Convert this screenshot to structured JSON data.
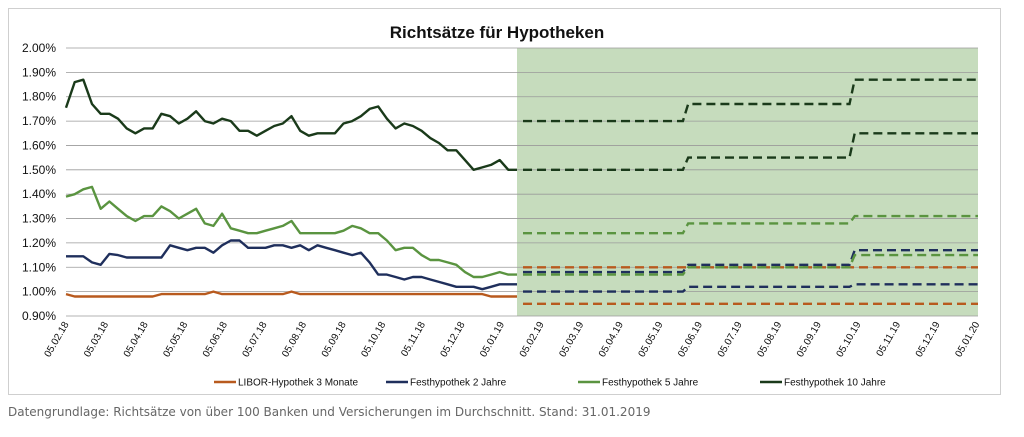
{
  "chart_data": {
    "type": "line",
    "title": "Richtsätze für Hypotheken",
    "xlabel": "",
    "ylabel": "",
    "ylim": [
      0.009,
      0.02
    ],
    "y_ticks": [
      "2.00%",
      "1.90%",
      "1.80%",
      "1.70%",
      "1.60%",
      "1.50%",
      "1.40%",
      "1.30%",
      "1.20%",
      "1.10%",
      "1.00%",
      "0.90%"
    ],
    "x_ticks": [
      "05.02.18",
      "05.03.18",
      "05.04.18",
      "05.05.18",
      "05.06.18",
      "05.07.18",
      "05.08.18",
      "05.09.18",
      "05.10.18",
      "05.11.18",
      "05.12.18",
      "05.01.19",
      "05.02.19",
      "05.03.19",
      "05.04.19",
      "05.05.19",
      "05.06.19",
      "05.07.19",
      "05.08.19",
      "05.09.19",
      "05.10.19",
      "05.11.19",
      "05.12.19",
      "05.01.20"
    ],
    "grid": true,
    "legend_placement": "bottom",
    "forecast_region": {
      "from": "05.02.19",
      "to": "end",
      "color": "#c6dcbd"
    },
    "series": [
      {
        "name": "LIBOR-Hypothek 3 Monate",
        "color": "#b85a1e",
        "values": [
          0.0099,
          0.0098,
          0.0098,
          0.0098,
          0.0098,
          0.0098,
          0.0098,
          0.0098,
          0.0098,
          0.0098,
          0.0098,
          0.0099,
          0.0099,
          0.0099,
          0.0099,
          0.0099,
          0.0099,
          0.01,
          0.0099,
          0.0099,
          0.0099,
          0.0099,
          0.0099,
          0.0099,
          0.0099,
          0.0099,
          0.01,
          0.0099,
          0.0099,
          0.0099,
          0.0099,
          0.0099,
          0.0099,
          0.0099,
          0.0099,
          0.0099,
          0.0099,
          0.0099,
          0.0099,
          0.0099,
          0.0099,
          0.0099,
          0.0099,
          0.0099,
          0.0099,
          0.0099,
          0.0099,
          0.0099,
          0.0099,
          0.0098,
          0.0098,
          0.0098,
          0.0098
        ],
        "forecast_low": [
          [
            0,
            0.0095
          ],
          [
            1,
            0.0095
          ]
        ],
        "forecast_high": [
          [
            0,
            0.011
          ],
          [
            1,
            0.011
          ]
        ]
      },
      {
        "name": "Festhypothek 2 Jahre",
        "color": "#1f2f5c",
        "values": [
          0.01145,
          0.01145,
          0.01145,
          0.0112,
          0.0111,
          0.01155,
          0.0115,
          0.0114,
          0.0114,
          0.0114,
          0.0114,
          0.0114,
          0.0119,
          0.0118,
          0.0117,
          0.0118,
          0.0118,
          0.0116,
          0.0119,
          0.0121,
          0.0121,
          0.0118,
          0.0118,
          0.0118,
          0.0119,
          0.0119,
          0.0118,
          0.0119,
          0.0117,
          0.0119,
          0.0118,
          0.0117,
          0.0116,
          0.0115,
          0.0116,
          0.0112,
          0.0107,
          0.0107,
          0.0106,
          0.0105,
          0.0106,
          0.0106,
          0.0105,
          0.0104,
          0.0103,
          0.0102,
          0.0102,
          0.0102,
          0.0101,
          0.0102,
          0.0103,
          0.0103,
          0.0103
        ],
        "forecast_low": [
          [
            0,
            0.01
          ],
          [
            0.3515,
            0.01
          ],
          [
            0.363,
            0.0102
          ],
          [
            0.7175,
            0.0102
          ],
          [
            0.729,
            0.0103
          ],
          [
            1,
            0.0103
          ]
        ],
        "forecast_high": [
          [
            0,
            0.0108
          ],
          [
            0.3515,
            0.0108
          ],
          [
            0.363,
            0.0111
          ],
          [
            0.7175,
            0.0111
          ],
          [
            0.729,
            0.0117
          ],
          [
            1,
            0.0117
          ]
        ]
      },
      {
        "name": "Festhypothek 5 Jahre",
        "color": "#5a9440",
        "values": [
          0.0139,
          0.014,
          0.0142,
          0.0143,
          0.0134,
          0.0137,
          0.0134,
          0.0131,
          0.0129,
          0.0131,
          0.0131,
          0.0135,
          0.0133,
          0.013,
          0.0132,
          0.0134,
          0.0128,
          0.0127,
          0.0132,
          0.0126,
          0.0125,
          0.0124,
          0.0124,
          0.0125,
          0.0126,
          0.0127,
          0.0129,
          0.0124,
          0.0124,
          0.0124,
          0.0124,
          0.0124,
          0.0125,
          0.0127,
          0.0126,
          0.0124,
          0.0124,
          0.0121,
          0.0117,
          0.0118,
          0.0118,
          0.0115,
          0.0113,
          0.0113,
          0.0112,
          0.0111,
          0.0108,
          0.0106,
          0.0106,
          0.0107,
          0.0108,
          0.0107,
          0.0107
        ],
        "forecast_low": [
          [
            0,
            0.0107
          ],
          [
            0.3515,
            0.0107
          ],
          [
            0.363,
            0.011
          ],
          [
            0.7175,
            0.011
          ],
          [
            0.729,
            0.0115
          ],
          [
            1,
            0.0115
          ]
        ],
        "forecast_high": [
          [
            0,
            0.0124
          ],
          [
            0.3515,
            0.0124
          ],
          [
            0.363,
            0.0128
          ],
          [
            0.7175,
            0.0128
          ],
          [
            0.729,
            0.0131
          ],
          [
            1,
            0.0131
          ]
        ]
      },
      {
        "name": "Festhypothek 10 Jahre",
        "color": "#1a3a1a",
        "values": [
          0.01755,
          0.0186,
          0.0187,
          0.0177,
          0.0173,
          0.0173,
          0.0171,
          0.0167,
          0.0165,
          0.0167,
          0.0167,
          0.0173,
          0.0172,
          0.0169,
          0.0171,
          0.0174,
          0.017,
          0.0169,
          0.0171,
          0.017,
          0.0166,
          0.0166,
          0.0164,
          0.0166,
          0.0168,
          0.0169,
          0.0172,
          0.0166,
          0.0164,
          0.0165,
          0.0165,
          0.0165,
          0.0169,
          0.017,
          0.0172,
          0.0175,
          0.0176,
          0.0171,
          0.0167,
          0.0169,
          0.0168,
          0.0166,
          0.0163,
          0.0161,
          0.0158,
          0.0158,
          0.0154,
          0.015,
          0.0151,
          0.0152,
          0.0154,
          0.015,
          0.015
        ],
        "forecast_low": [
          [
            0,
            0.015
          ],
          [
            0.3515,
            0.015
          ],
          [
            0.363,
            0.0155
          ],
          [
            0.7175,
            0.0155
          ],
          [
            0.729,
            0.0165
          ],
          [
            1,
            0.0165
          ]
        ],
        "forecast_high": [
          [
            0,
            0.017
          ],
          [
            0.3515,
            0.017
          ],
          [
            0.363,
            0.0177
          ],
          [
            0.7175,
            0.0177
          ],
          [
            0.729,
            0.0187
          ],
          [
            1,
            0.0187
          ]
        ]
      }
    ]
  },
  "source_note": "Datengrundlage: Richtsätze von über 100 Banken und Versicherungen im Durchschnitt. Stand: 31.01.2019"
}
